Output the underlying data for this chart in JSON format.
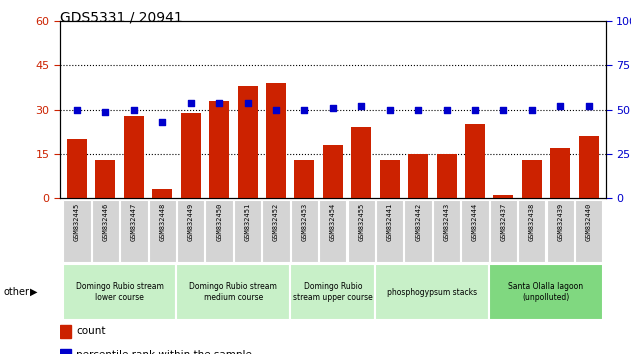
{
  "title": "GDS5331 / 20941",
  "samples": [
    "GSM832445",
    "GSM832446",
    "GSM832447",
    "GSM832448",
    "GSM832449",
    "GSM832450",
    "GSM832451",
    "GSM832452",
    "GSM832453",
    "GSM832454",
    "GSM832455",
    "GSM832441",
    "GSM832442",
    "GSM832443",
    "GSM832444",
    "GSM832437",
    "GSM832438",
    "GSM832439",
    "GSM832440"
  ],
  "counts": [
    20,
    13,
    28,
    3,
    29,
    33,
    38,
    39,
    13,
    18,
    24,
    13,
    15,
    15,
    25,
    1,
    13,
    17,
    21
  ],
  "percentiles": [
    50,
    49,
    50,
    43,
    54,
    54,
    54,
    50,
    50,
    51,
    52,
    50,
    50,
    50,
    50,
    50,
    50,
    52,
    52
  ],
  "groups": [
    {
      "label": "Domingo Rubio stream\nlower course",
      "start": 0,
      "end": 4,
      "color": "#c8f0c8"
    },
    {
      "label": "Domingo Rubio stream\nmedium course",
      "start": 4,
      "end": 8,
      "color": "#c8f0c8"
    },
    {
      "label": "Domingo Rubio\nstream upper course",
      "start": 8,
      "end": 11,
      "color": "#c8f0c8"
    },
    {
      "label": "phosphogypsum stacks",
      "start": 11,
      "end": 15,
      "color": "#c8f0c8"
    },
    {
      "label": "Santa Olalla lagoon\n(unpolluted)",
      "start": 15,
      "end": 19,
      "color": "#80d880"
    }
  ],
  "bar_color": "#cc2200",
  "dot_color": "#0000cc",
  "left_ylim": [
    0,
    60
  ],
  "right_ylim": [
    0,
    100
  ],
  "left_yticks": [
    0,
    15,
    30,
    45,
    60
  ],
  "right_yticks": [
    0,
    25,
    50,
    75,
    100
  ],
  "grid_vals": [
    15,
    30,
    45
  ],
  "left_tick_color": "#cc2200",
  "right_tick_color": "#0000cc"
}
